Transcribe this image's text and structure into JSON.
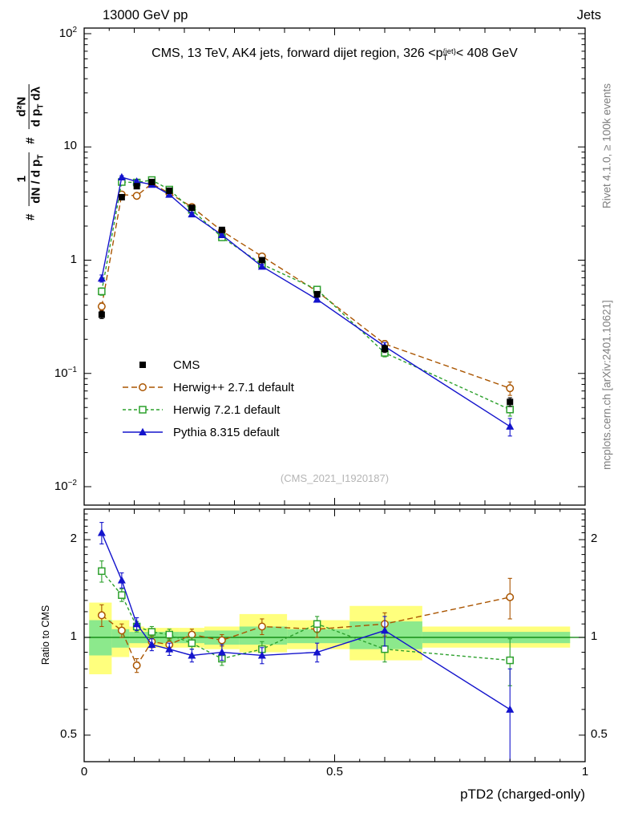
{
  "header": {
    "left": "13000 GeV pp",
    "right": "Jets"
  },
  "title": {
    "prefix": "CMS, 13 TeV, AK4 jets, forward dijet region, 326 <p",
    "sup": "{jet}",
    "sub": "T",
    "suffix": "< 408 GeV"
  },
  "ylabel": {
    "h1": "#",
    "f1num": "1",
    "f1den": "dN / d p",
    "f1densub": "T",
    "h2": "#",
    "f2num": "d²N",
    "f2den": "d p",
    "f2densub": "T",
    "f2dentail": " dλ"
  },
  "side_notes": {
    "right_top": "Rivet 4.1.0, ≥ 100k events",
    "right_bottom": "mcplots.cern.ch [arXiv:2401.10621]"
  },
  "watermark": "(CMS_2021_I1920187)",
  "ratio_label": "Ratio to CMS",
  "x_axis": {
    "label": "pTD2 (charged-only)",
    "min": 0,
    "max": 1,
    "major_ticks": [
      {
        "v": 0,
        "label": "0"
      },
      {
        "v": 0.5,
        "label": "0.5"
      },
      {
        "v": 1,
        "label": "1"
      }
    ]
  },
  "y_axis_main": {
    "scale": "log",
    "min": 0.01,
    "max": 100,
    "major_ticks": [
      {
        "v": 100,
        "base": "10",
        "exp": "2"
      },
      {
        "v": 10,
        "base": "10",
        "exp": ""
      },
      {
        "v": 1,
        "base": "1",
        "exp": ""
      },
      {
        "v": 0.1,
        "base": "10",
        "exp": "−1"
      },
      {
        "v": 0.01,
        "base": "10",
        "exp": "−2"
      }
    ]
  },
  "y_axis_ratio": {
    "scale": "log",
    "major_ticks": [
      {
        "v": 2,
        "label": "2"
      },
      {
        "v": 1,
        "label": "1"
      },
      {
        "v": 0.5,
        "label": "0.5"
      }
    ]
  },
  "legend": [
    {
      "label": "CMS",
      "color": "#000000",
      "marker": "square-filled",
      "line": "none",
      "dash": ""
    },
    {
      "label": "Herwig++ 2.7.1 default",
      "color": "#aa5500",
      "marker": "circle-open",
      "line": "dashed",
      "dash": "7,4"
    },
    {
      "label": "Herwig 7.2.1 default",
      "color": "#2ca02c",
      "marker": "square-open",
      "line": "dashed",
      "dash": "4,3"
    },
    {
      "label": "Pythia 8.315 default",
      "color": "#1414cc",
      "marker": "triangle-filled",
      "line": "solid",
      "dash": ""
    }
  ],
  "chart_data": {
    "type": "line",
    "xlabel": "pTD2 (charged-only)",
    "xlim": [
      0,
      1
    ],
    "ylim_main": [
      0.01,
      100
    ],
    "ylim_ratio": [
      0.41,
      2.48
    ],
    "x": [
      0.035,
      0.075,
      0.105,
      0.135,
      0.17,
      0.215,
      0.275,
      0.355,
      0.465,
      0.6,
      0.85
    ],
    "bin_edges": [
      0.01,
      0.055,
      0.09,
      0.12,
      0.15,
      0.19,
      0.24,
      0.31,
      0.405,
      0.53,
      0.675,
      0.97
    ],
    "series": [
      {
        "name": "CMS",
        "color": "#000000",
        "marker": "square-filled",
        "line": "none",
        "dash": "",
        "values": [
          0.33,
          3.6,
          4.5,
          4.9,
          4.1,
          2.9,
          1.85,
          1.0,
          0.5,
          0.165,
          0.056
        ],
        "errors": [
          0.025,
          0.15,
          0.18,
          0.2,
          0.17,
          0.12,
          0.08,
          0.05,
          0.03,
          0.012,
          0.005
        ]
      },
      {
        "name": "Herwig++ 2.7.1 default",
        "color": "#aa5500",
        "marker": "circle-open",
        "line": "dashed",
        "dash": "7,4",
        "values": [
          0.39,
          3.8,
          3.7,
          4.75,
          3.9,
          2.95,
          1.81,
          1.08,
          0.53,
          0.182,
          0.074
        ],
        "errors": [
          0.03,
          0.12,
          0.12,
          0.14,
          0.12,
          0.1,
          0.07,
          0.05,
          0.025,
          0.013,
          0.01
        ],
        "ratio": [
          1.17,
          1.05,
          0.82,
          0.97,
          0.95,
          1.02,
          0.98,
          1.08,
          1.06,
          1.1,
          1.33
        ],
        "ratio_errors": [
          0.09,
          0.05,
          0.04,
          0.04,
          0.04,
          0.04,
          0.04,
          0.06,
          0.06,
          0.09,
          0.19
        ]
      },
      {
        "name": "Herwig 7.2.1 default",
        "color": "#2ca02c",
        "marker": "square-open",
        "line": "dashed",
        "dash": "4,3",
        "values": [
          0.53,
          4.9,
          4.85,
          5.1,
          4.2,
          2.78,
          1.59,
          0.92,
          0.55,
          0.152,
          0.048
        ],
        "errors": [
          0.04,
          0.15,
          0.15,
          0.15,
          0.13,
          0.1,
          0.07,
          0.04,
          0.025,
          0.012,
          0.006
        ],
        "ratio": [
          1.6,
          1.35,
          1.08,
          1.04,
          1.02,
          0.96,
          0.86,
          0.92,
          1.1,
          0.92,
          0.85
        ],
        "ratio_errors": [
          0.12,
          0.06,
          0.04,
          0.04,
          0.04,
          0.04,
          0.04,
          0.05,
          0.06,
          0.08,
          0.14
        ]
      },
      {
        "name": "Pythia 8.315 default",
        "color": "#1414cc",
        "marker": "triangle-filled",
        "line": "solid",
        "dash": "",
        "values": [
          0.69,
          5.4,
          4.95,
          4.65,
          3.8,
          2.55,
          1.67,
          0.88,
          0.45,
          0.173,
          0.034
        ],
        "errors": [
          0.05,
          0.17,
          0.15,
          0.15,
          0.13,
          0.1,
          0.08,
          0.04,
          0.025,
          0.014,
          0.006
        ],
        "ratio": [
          2.1,
          1.5,
          1.1,
          0.95,
          0.92,
          0.88,
          0.9,
          0.88,
          0.9,
          1.05,
          0.6
        ],
        "ratio_errors": [
          0.16,
          0.08,
          0.05,
          0.04,
          0.04,
          0.04,
          0.05,
          0.05,
          0.06,
          0.11,
          0.2
        ]
      }
    ],
    "ratio_bands": {
      "yellow_color": "#ffff7d",
      "green_color": "#8ce98c",
      "yellow": [
        [
          0.77,
          1.28
        ],
        [
          0.87,
          1.13
        ],
        [
          0.93,
          1.08
        ],
        [
          0.93,
          1.07
        ],
        [
          0.93,
          1.07
        ],
        [
          0.93,
          1.07
        ],
        [
          0.92,
          1.08
        ],
        [
          0.9,
          1.18
        ],
        [
          0.92,
          1.13
        ],
        [
          0.85,
          1.25
        ],
        [
          0.93,
          1.08
        ]
      ],
      "green": [
        [
          0.88,
          1.13
        ],
        [
          0.93,
          1.06
        ],
        [
          0.96,
          1.04
        ],
        [
          0.96,
          1.04
        ],
        [
          0.96,
          1.04
        ],
        [
          0.96,
          1.04
        ],
        [
          0.95,
          1.05
        ],
        [
          0.95,
          1.08
        ],
        [
          0.96,
          1.06
        ],
        [
          0.92,
          1.12
        ],
        [
          0.96,
          1.04
        ]
      ]
    }
  }
}
